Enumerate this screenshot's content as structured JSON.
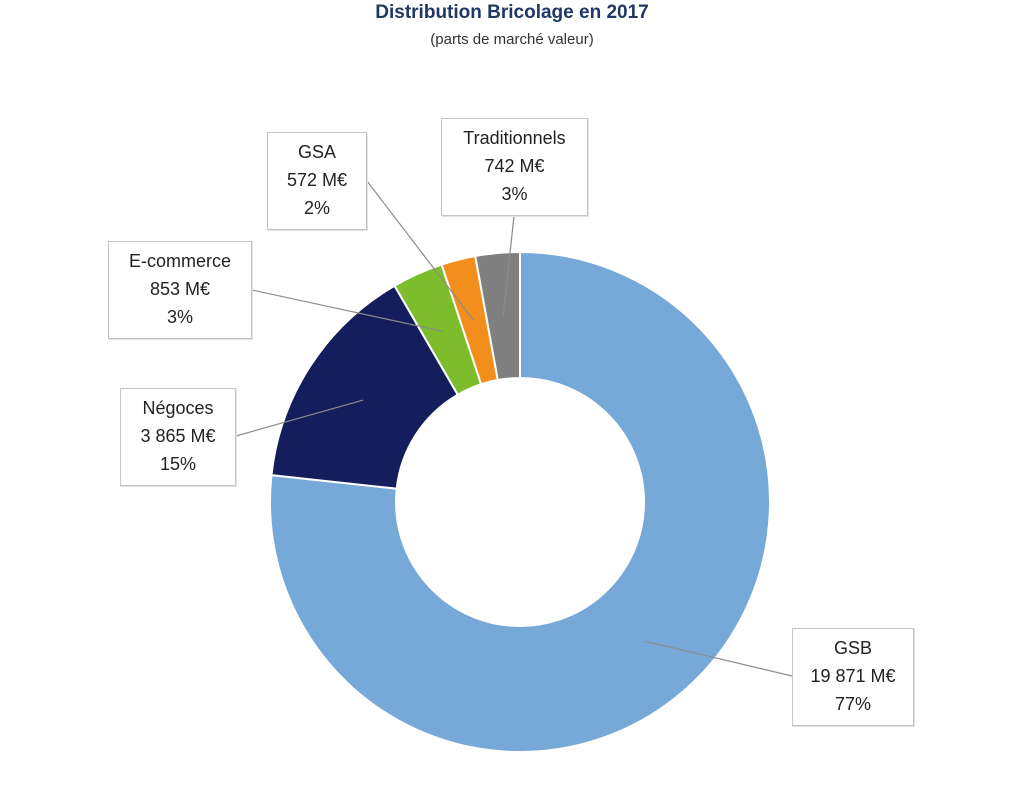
{
  "chart_data": {
    "type": "pie",
    "title": "Distribution Bricolage en 2017",
    "subtitle": "(parts de marché valeur)",
    "slices": [
      {
        "name": "GSB",
        "value": 19871,
        "value_label": "19 871  M€",
        "percent_label": "77%",
        "color": "#76a8d8"
      },
      {
        "name": "Négoces",
        "value": 3865,
        "value_label": "3 865  M€",
        "percent_label": "15%",
        "color": "#141e5c"
      },
      {
        "name": "E-commerce",
        "value": 853,
        "value_label": "853  M€",
        "percent_label": "3%",
        "color": "#7dbd2c"
      },
      {
        "name": "GSA",
        "value": 572,
        "value_label": "572  M€",
        "percent_label": "2%",
        "color": "#f28e1b"
      },
      {
        "name": "Traditionnels",
        "value": 742,
        "value_label": "742  M€",
        "percent_label": "3%",
        "color": "#7f7f7f"
      }
    ]
  }
}
